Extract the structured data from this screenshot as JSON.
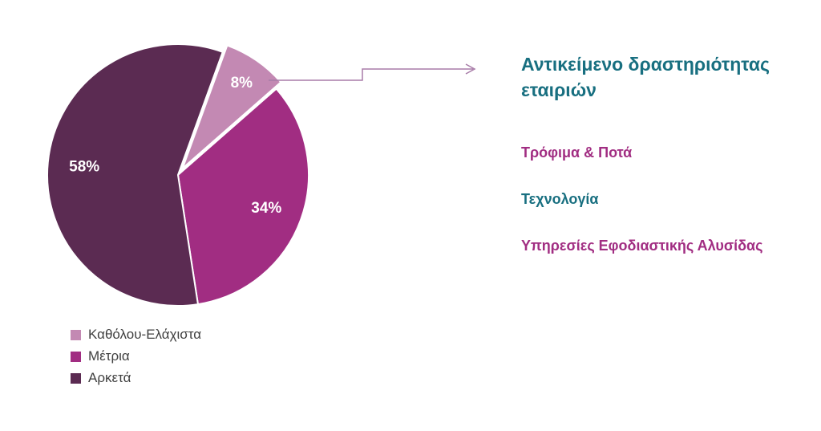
{
  "chart_data": {
    "type": "pie",
    "title": "",
    "start_angle_deg": 20,
    "direction": "clockwise",
    "legend_position": "bottom-left",
    "slices": [
      {
        "label": "Καθόλου-Ελάχιστα",
        "value": 8,
        "pct_label": "8%",
        "color": "#c389b3",
        "label_color": "#ffffff",
        "explode": 10,
        "label_r": 0.8
      },
      {
        "label": "Μέτρια",
        "value": 34,
        "pct_label": "34%",
        "color": "#a12d82",
        "label_color": "#ffffff",
        "explode": 0,
        "label_r": 0.72
      },
      {
        "label": "Αρκετά",
        "value": 58,
        "pct_label": "58%",
        "color": "#5b2b52",
        "label_color": "#ffffff",
        "explode": 0,
        "label_r": 0.72
      }
    ]
  },
  "annotation": {
    "heading": "Αντικείμενο δραστηριότητας εταιριών",
    "heading_color": "#186f80",
    "connector_color": "#a87ca8",
    "items": [
      {
        "text": "Τρόφιμα & Ποτά",
        "color": "#a12d82"
      },
      {
        "text": "Τεχνολογία",
        "color": "#186f80"
      },
      {
        "text": "Υπηρεσίες Εφοδιαστικής Αλυσίδας",
        "color": "#a12d82"
      }
    ]
  }
}
